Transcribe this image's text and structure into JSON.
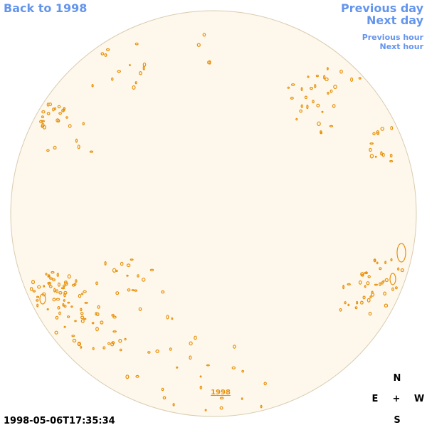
{
  "nav": {
    "back": "Back to 1998",
    "previous_day": "Previous day",
    "next_day": "Next day",
    "previous_hour": "Previous hour",
    "next_hour": "Next hour"
  },
  "disk_link": "1998",
  "timestamp": "1998-05-06T17:35:34",
  "compass": {
    "north": "N",
    "east": "E",
    "center": "+",
    "west": "W",
    "south": "S"
  }
}
